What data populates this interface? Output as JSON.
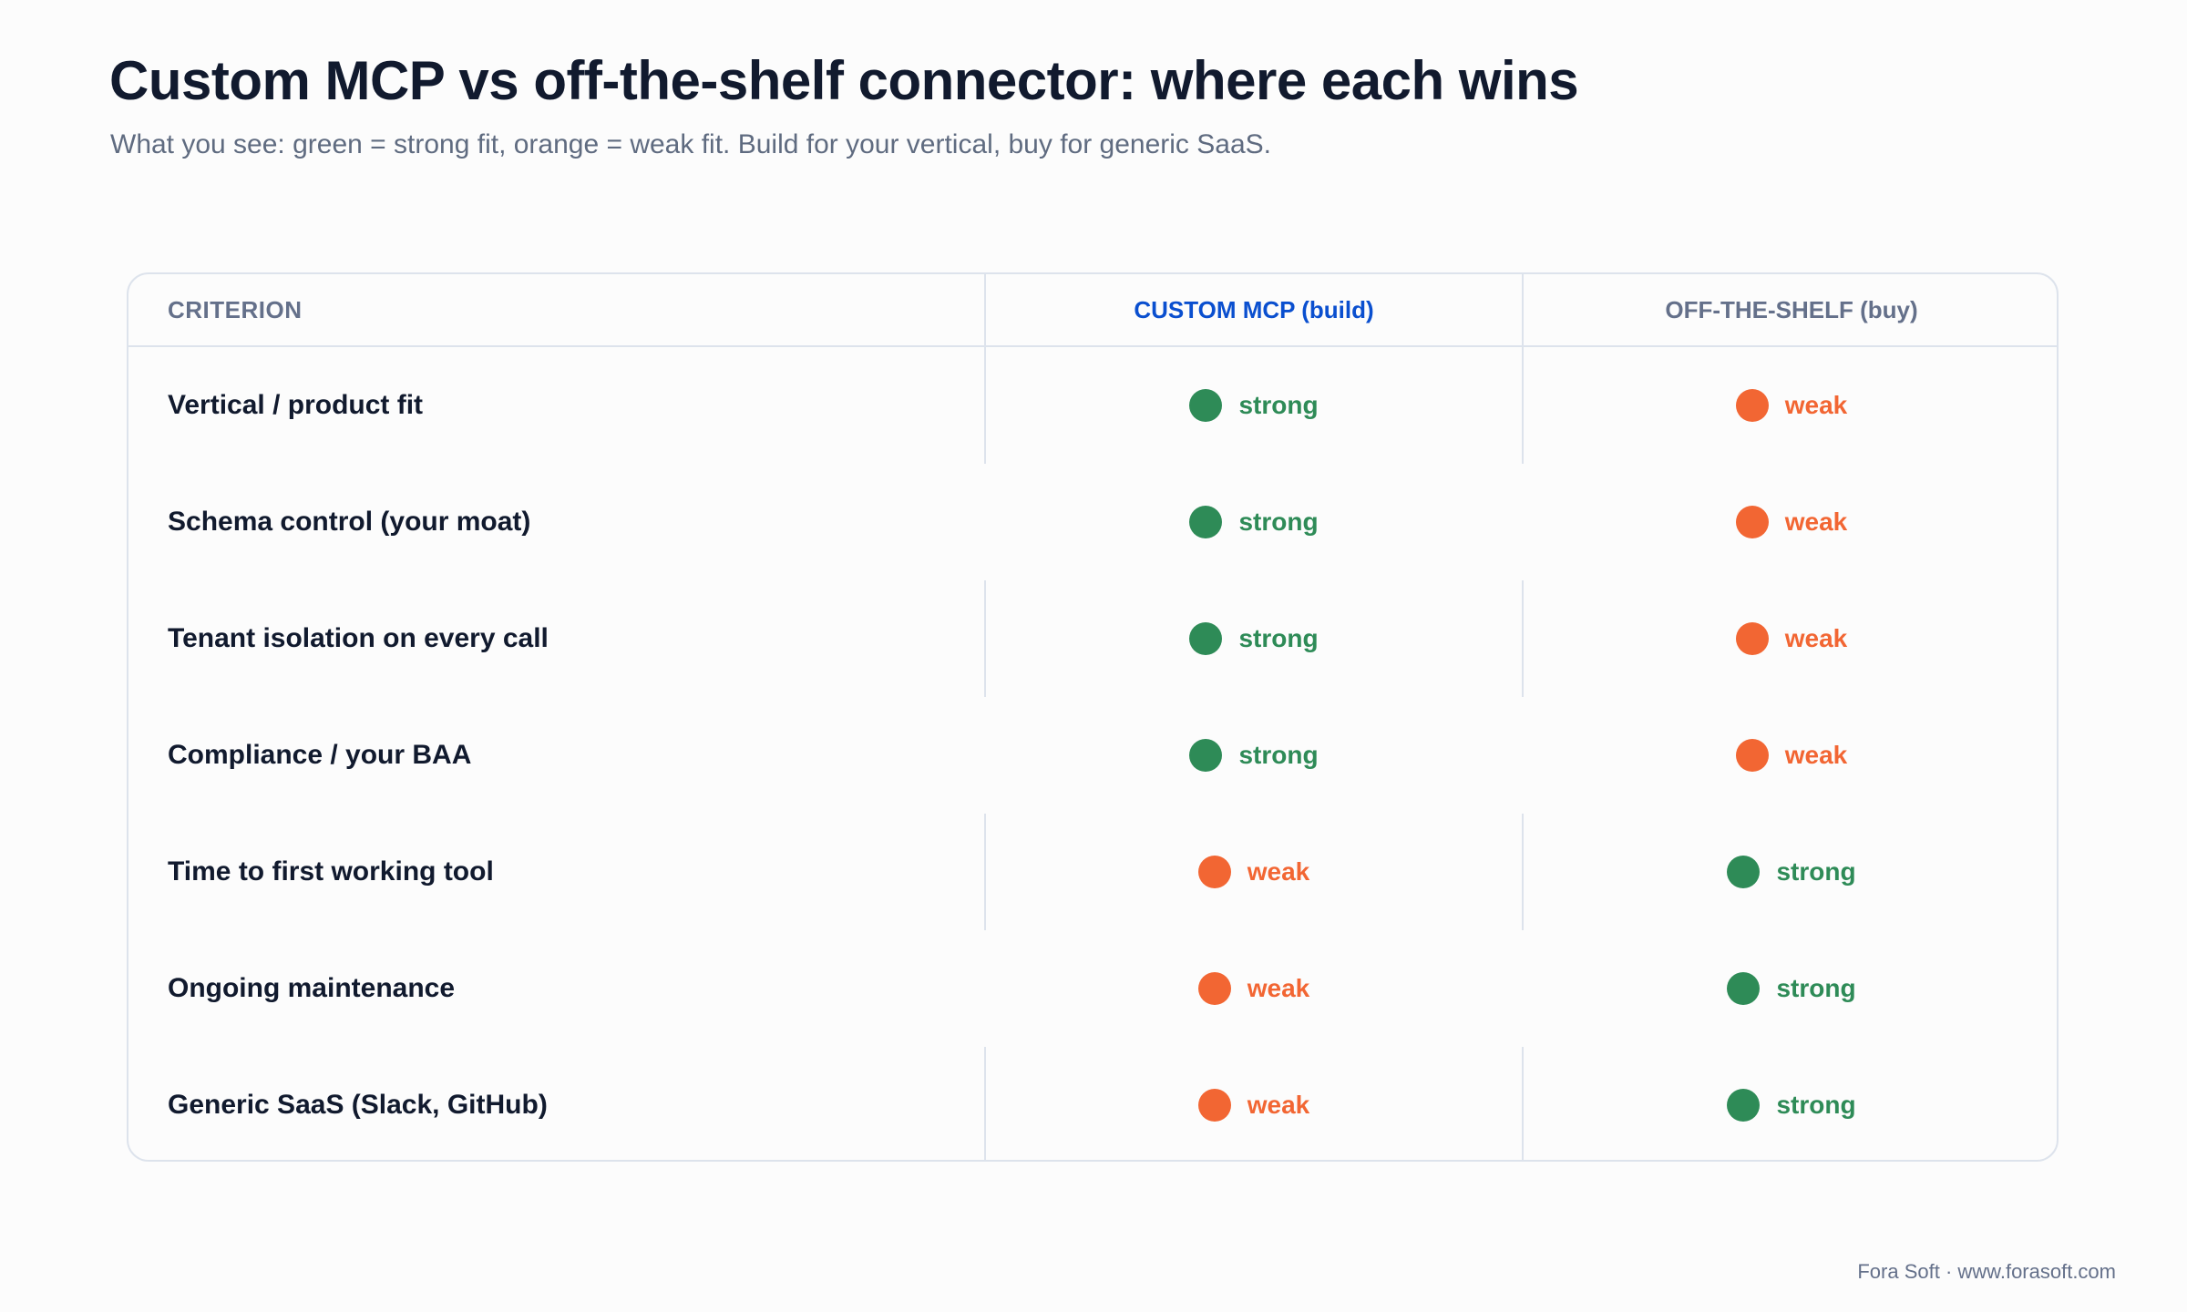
{
  "title": "Custom MCP vs off-the-shelf connector: where each wins",
  "subtitle": "What you see: green = strong fit, orange = weak fit. Build for your vertical, buy for generic SaaS.",
  "footer": "Fora Soft · www.forasoft.com",
  "colors": {
    "strong": "#2e8b57",
    "weak": "#f26633",
    "custom_header": "#0a4fcf"
  },
  "chart_data": {
    "type": "table",
    "columns": [
      "CRITERION",
      "CUSTOM MCP (build)",
      "OFF-THE-SHELF (buy)"
    ],
    "rows": [
      {
        "criterion": "Vertical / product fit",
        "custom": "strong",
        "shelf": "weak"
      },
      {
        "criterion": "Schema control (your moat)",
        "custom": "strong",
        "shelf": "weak"
      },
      {
        "criterion": "Tenant isolation on every call",
        "custom": "strong",
        "shelf": "weak"
      },
      {
        "criterion": "Compliance / your BAA",
        "custom": "strong",
        "shelf": "weak"
      },
      {
        "criterion": "Time to first working tool",
        "custom": "weak",
        "shelf": "strong"
      },
      {
        "criterion": "Ongoing maintenance",
        "custom": "weak",
        "shelf": "strong"
      },
      {
        "criterion": "Generic SaaS (Slack, GitHub)",
        "custom": "weak",
        "shelf": "strong"
      }
    ]
  }
}
